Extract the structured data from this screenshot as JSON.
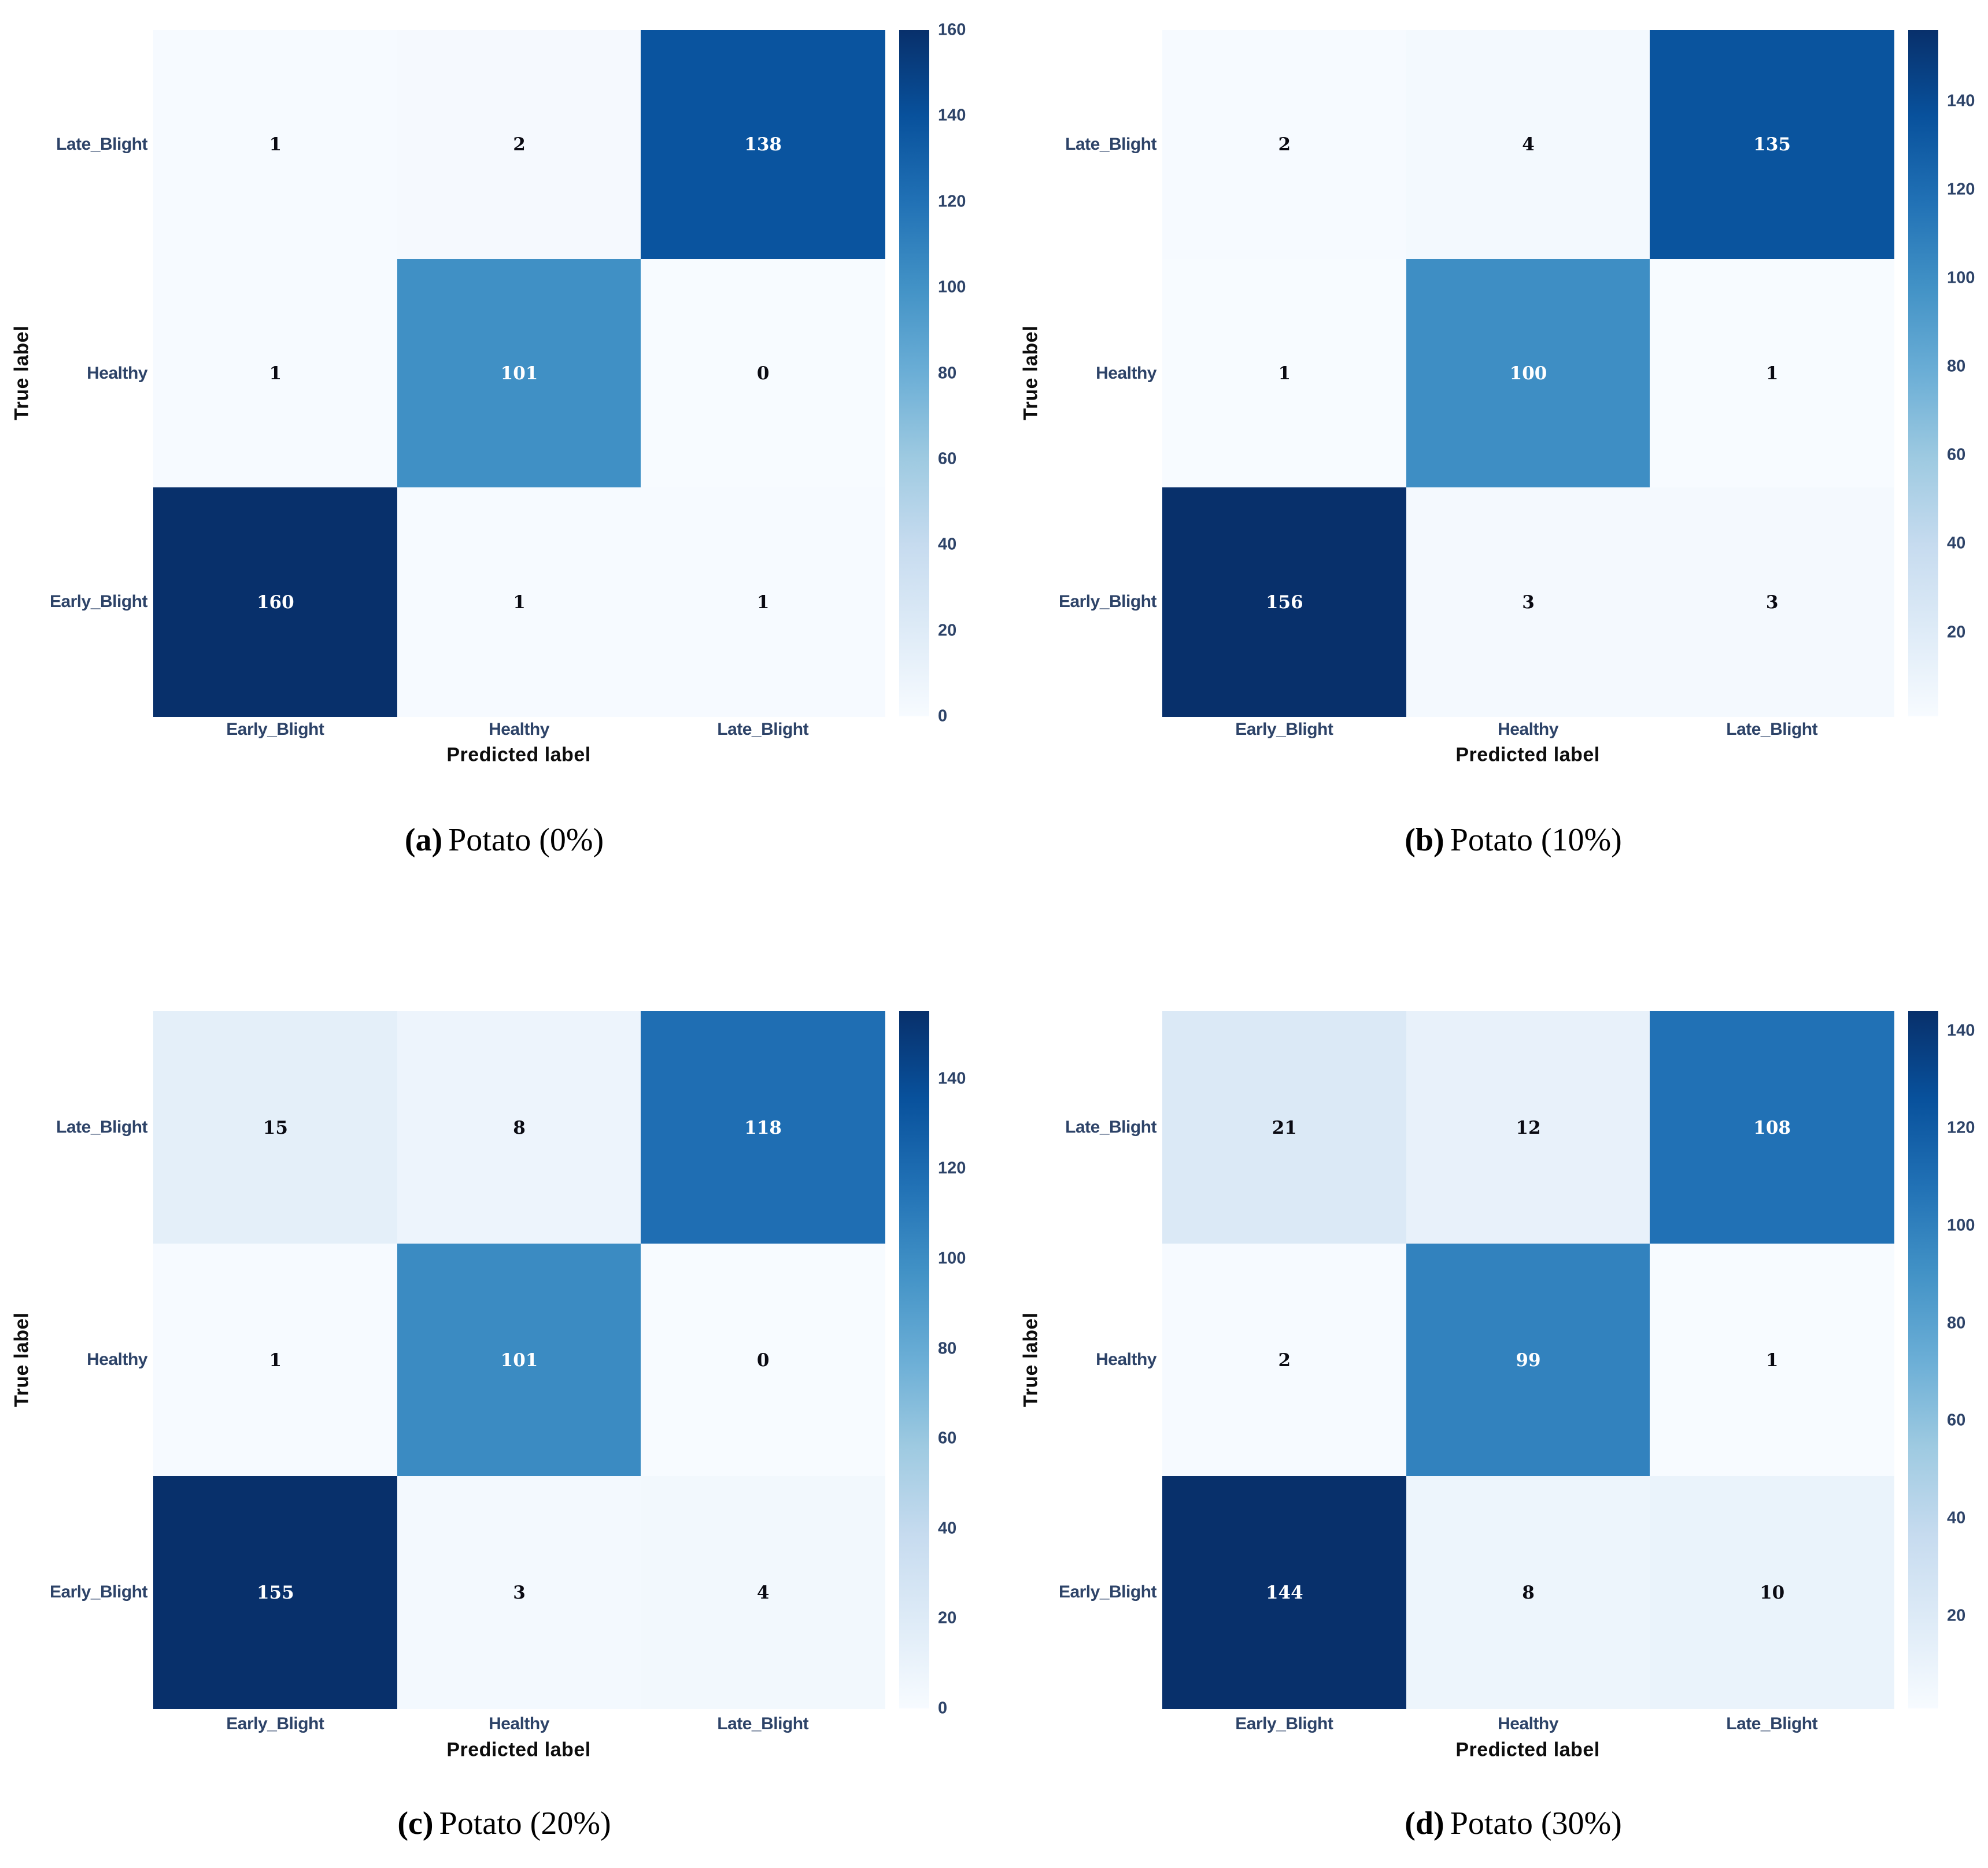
{
  "page": {
    "background": "#ffffff"
  },
  "chart_data": [
    {
      "type": "heatmap",
      "panel": "a",
      "caption_label": "(a)",
      "caption_text": "Potato (0%)",
      "xlabel": "Predicted label",
      "ylabel": "True label",
      "x_categories": [
        "Early_Blight",
        "Healthy",
        "Late_Blight"
      ],
      "y_categories": [
        "Late_Blight",
        "Healthy",
        "Early_Blight"
      ],
      "matrix": [
        [
          1,
          2,
          138
        ],
        [
          1,
          101,
          0
        ],
        [
          160,
          1,
          1
        ]
      ],
      "vmin": 0,
      "vmax": 160,
      "colorbar_ticks": [
        0,
        20,
        40,
        60,
        80,
        100,
        120,
        140,
        160
      ],
      "colormap": "Blues",
      "colorbar_position": "right",
      "grid": false
    },
    {
      "type": "heatmap",
      "panel": "b",
      "caption_label": "(b)",
      "caption_text": "Potato (10%)",
      "xlabel": "Predicted label",
      "ylabel": "True label",
      "x_categories": [
        "Early_Blight",
        "Healthy",
        "Late_Blight"
      ],
      "y_categories": [
        "Late_Blight",
        "Healthy",
        "Early_Blight"
      ],
      "matrix": [
        [
          2,
          4,
          135
        ],
        [
          1,
          100,
          1
        ],
        [
          156,
          3,
          3
        ]
      ],
      "vmin": 1,
      "vmax": 156,
      "colorbar_ticks": [
        20,
        40,
        60,
        80,
        100,
        120,
        140
      ],
      "colormap": "Blues",
      "colorbar_position": "right",
      "grid": false
    },
    {
      "type": "heatmap",
      "panel": "c",
      "caption_label": "(c)",
      "caption_text": "Potato (20%)",
      "xlabel": "Predicted label",
      "ylabel": "True label",
      "x_categories": [
        "Early_Blight",
        "Healthy",
        "Late_Blight"
      ],
      "y_categories": [
        "Late_Blight",
        "Healthy",
        "Early_Blight"
      ],
      "matrix": [
        [
          15,
          8,
          118
        ],
        [
          1,
          101,
          0
        ],
        [
          155,
          3,
          4
        ]
      ],
      "vmin": 0,
      "vmax": 155,
      "colorbar_ticks": [
        0,
        20,
        40,
        60,
        80,
        100,
        120,
        140
      ],
      "colormap": "Blues",
      "colorbar_position": "right",
      "grid": false
    },
    {
      "type": "heatmap",
      "panel": "d",
      "caption_label": "(d)",
      "caption_text": "Potato (30%)",
      "xlabel": "Predicted label",
      "ylabel": "True label",
      "x_categories": [
        "Early_Blight",
        "Healthy",
        "Late_Blight"
      ],
      "y_categories": [
        "Late_Blight",
        "Healthy",
        "Early_Blight"
      ],
      "matrix": [
        [
          21,
          12,
          108
        ],
        [
          2,
          99,
          1
        ],
        [
          144,
          8,
          10
        ]
      ],
      "vmin": 1,
      "vmax": 144,
      "colorbar_ticks": [
        20,
        40,
        60,
        80,
        100,
        120,
        140
      ],
      "colormap": "Blues",
      "colorbar_position": "right",
      "grid": false
    }
  ],
  "colors": {
    "background": "#ffffff",
    "tick_label": "#2d4368",
    "axis_title": "#0d0d0d",
    "caption_text": "#000000",
    "annotation_on_dark": "#ffffff",
    "annotation_on_light": "#0a0a12",
    "colormap_stops": [
      {
        "t": 0.0,
        "color": "#f7fbff"
      },
      {
        "t": 0.125,
        "color": "#deebf7"
      },
      {
        "t": 0.25,
        "color": "#c6dbef"
      },
      {
        "t": 0.375,
        "color": "#9ecae1"
      },
      {
        "t": 0.5,
        "color": "#6baed6"
      },
      {
        "t": 0.625,
        "color": "#4292c6"
      },
      {
        "t": 0.75,
        "color": "#2171b5"
      },
      {
        "t": 0.875,
        "color": "#08519c"
      },
      {
        "t": 1.0,
        "color": "#08306b"
      }
    ]
  }
}
